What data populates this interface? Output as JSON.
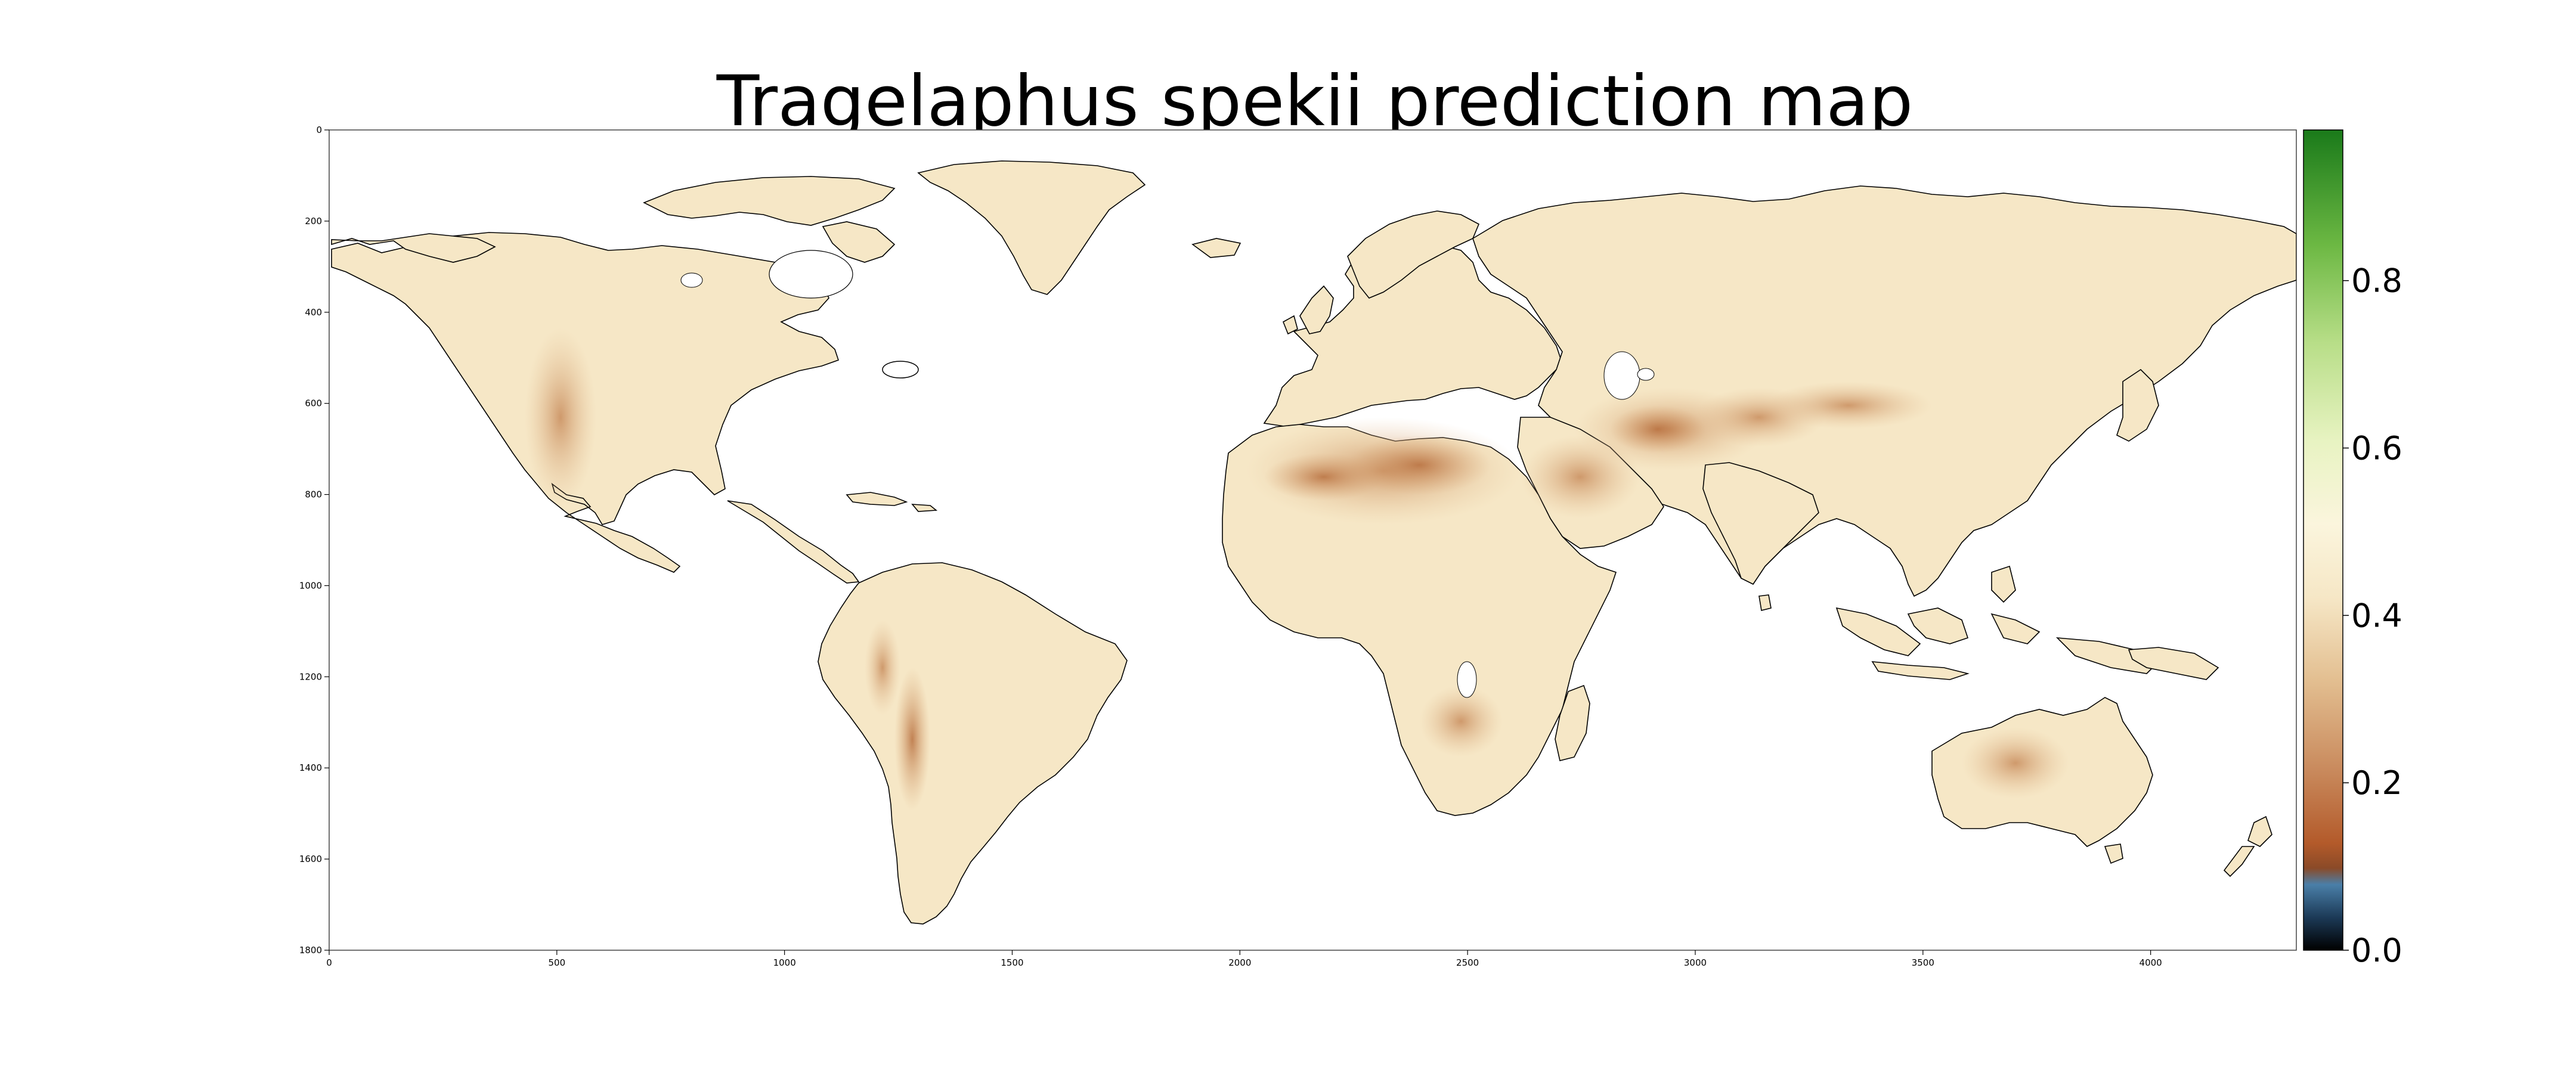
{
  "title": "Tragelaphus spekii prediction map",
  "axes": {
    "x_ticks": [
      "0",
      "500",
      "1000",
      "1500",
      "2000",
      "2500",
      "3000",
      "3500",
      "4000"
    ],
    "y_ticks": [
      "0",
      "200",
      "400",
      "600",
      "800",
      "1000",
      "1200",
      "1400",
      "1600",
      "1800"
    ]
  },
  "colorbar": {
    "ticks": [
      "0.0",
      "0.2",
      "0.4",
      "0.6",
      "0.8"
    ],
    "tick_values": [
      0.0,
      0.2,
      0.4,
      0.6,
      0.8
    ],
    "range": [
      0.0,
      0.98
    ],
    "colormap": [
      "#000000",
      "#1f4a6e",
      "#4a7fa8",
      "#b35a2a",
      "#c98a5d",
      "#e8c9a0",
      "#fbf3d9",
      "#e6f2bf",
      "#9fd06a",
      "#48a82e",
      "#1a7a1a"
    ]
  },
  "chart_data": {
    "type": "heatmap",
    "title": "Tragelaphus spekii prediction map",
    "xlim": [
      0,
      4320
    ],
    "ylim": [
      1800,
      0
    ],
    "value_range": [
      0.0,
      0.98
    ],
    "dominant_land_value": 0.4,
    "low_value_regions": [
      "Sahara Desert",
      "Arabian Peninsula",
      "Iranian Plateau",
      "Tibetan Plateau",
      "Andes",
      "Rocky Mountains"
    ]
  },
  "colors": {
    "land_base": "#f6e7c6",
    "land_dry": "#d9a878",
    "land_very_dry": "#c17d50"
  }
}
